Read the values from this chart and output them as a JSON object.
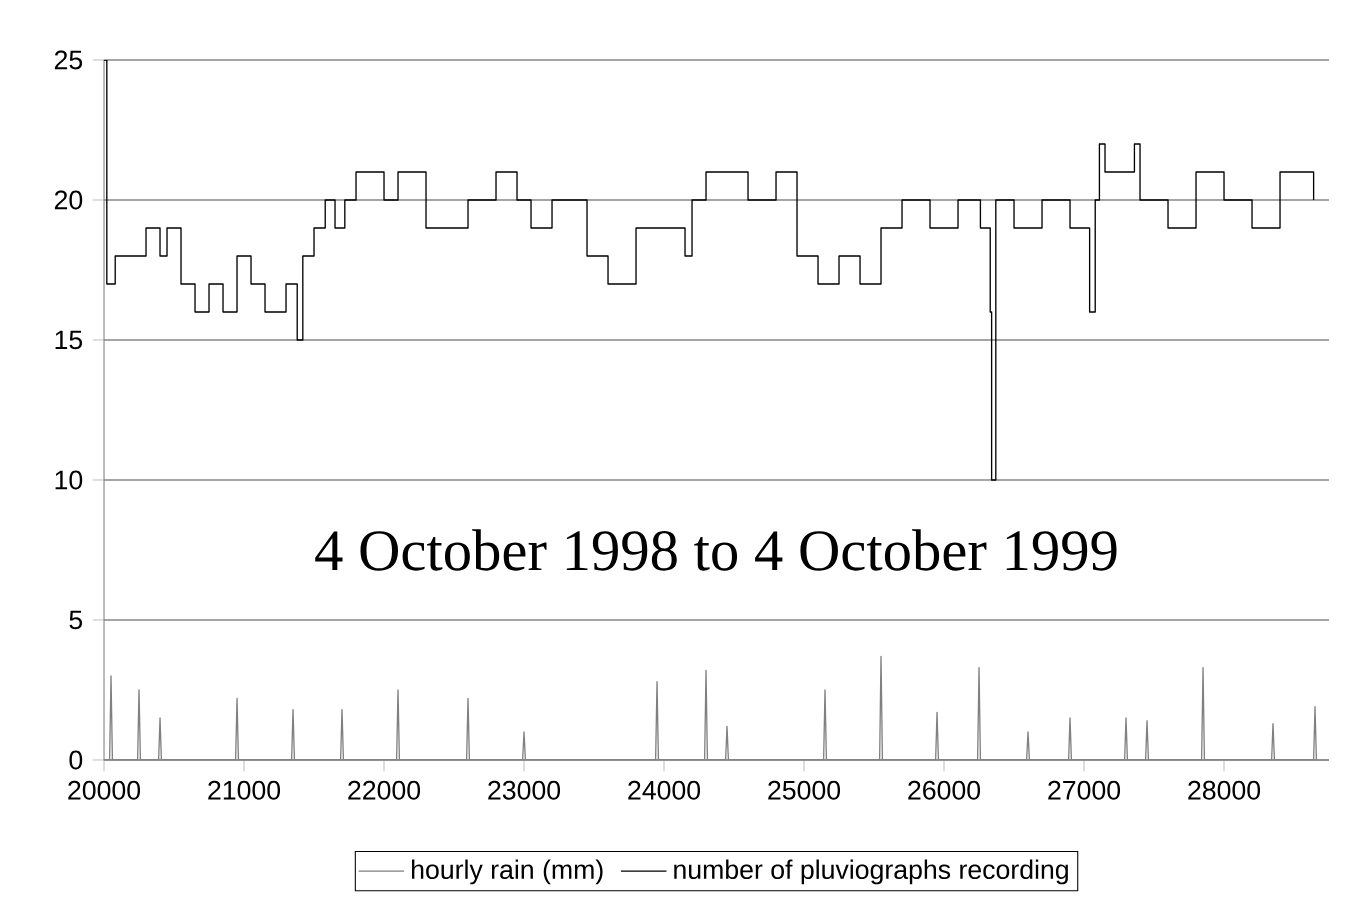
{
  "chart_data": {
    "type": "step",
    "annotations": [
      "4 October 1998 to 4 October 1999"
    ],
    "xlim": [
      20000,
      28750
    ],
    "ylim": [
      0,
      25
    ],
    "xticks": [
      20000,
      21000,
      22000,
      23000,
      24000,
      25000,
      26000,
      27000,
      28000
    ],
    "yticks": [
      0,
      5,
      10,
      15,
      20,
      25
    ],
    "grid": "y",
    "legend": "bottom",
    "series": [
      {
        "name": "hourly rain (mm)",
        "type": "line",
        "color": "#808080",
        "x": [
          20000,
          20040,
          20050,
          20060,
          20240,
          20250,
          20260,
          20390,
          20400,
          20410,
          20940,
          20950,
          20960,
          21340,
          21350,
          21360,
          21690,
          21700,
          21710,
          22090,
          22100,
          22110,
          22590,
          22600,
          22610,
          22990,
          23000,
          23010,
          23940,
          23950,
          23960,
          24290,
          24300,
          24310,
          24440,
          24450,
          24460,
          25140,
          25150,
          25160,
          25540,
          25550,
          25560,
          25940,
          25950,
          25960,
          26240,
          26250,
          26260,
          26590,
          26600,
          26610,
          26890,
          26900,
          26910,
          27290,
          27300,
          27310,
          27440,
          27450,
          27460,
          27840,
          27850,
          27860,
          28340,
          28350,
          28360,
          28640,
          28650,
          28660
        ],
        "values": [
          0,
          0,
          3.0,
          0,
          0,
          2.5,
          0,
          0,
          1.5,
          0,
          0,
          2.2,
          0,
          0,
          1.8,
          0,
          0,
          1.8,
          0,
          0,
          2.5,
          0,
          0,
          2.2,
          0,
          0,
          1.0,
          0,
          0,
          2.8,
          0,
          0,
          3.2,
          0,
          0,
          1.2,
          0,
          0,
          2.5,
          0,
          0,
          3.7,
          0,
          0,
          1.7,
          0,
          0,
          3.3,
          0,
          0,
          1.0,
          0,
          0,
          1.5,
          0,
          0,
          1.5,
          0,
          0,
          1.4,
          0,
          0,
          3.3,
          0,
          0,
          1.3,
          0,
          0,
          1.9,
          0
        ]
      },
      {
        "name": "number of pluviographs recording",
        "color": "#000000",
        "x": [
          20000,
          20020,
          20080,
          20200,
          20300,
          20400,
          20450,
          20550,
          20650,
          20750,
          20850,
          20950,
          21050,
          21150,
          21300,
          21380,
          21420,
          21500,
          21580,
          21650,
          21720,
          21800,
          22000,
          22100,
          22300,
          22500,
          22600,
          22800,
          22950,
          23050,
          23200,
          23450,
          23600,
          23800,
          24000,
          24150,
          24200,
          24300,
          24600,
          24800,
          24950,
          25100,
          25250,
          25400,
          25550,
          25700,
          25900,
          26100,
          26260,
          26330,
          26340,
          26370,
          26500,
          26700,
          26900,
          27040,
          27080,
          27110,
          27150,
          27360,
          27400,
          27600,
          27800,
          28000,
          28200,
          28400,
          28640
        ],
        "values": [
          25,
          17,
          18,
          18,
          19,
          18,
          19,
          17,
          16,
          17,
          16,
          18,
          17,
          16,
          17,
          15,
          18,
          19,
          20,
          19,
          20,
          21,
          20,
          21,
          19,
          19,
          20,
          21,
          20,
          19,
          20,
          18,
          17,
          19,
          19,
          18,
          20,
          21,
          20,
          21,
          18,
          17,
          18,
          17,
          19,
          20,
          19,
          20,
          19,
          16,
          10,
          20,
          19,
          20,
          19,
          16,
          20,
          22,
          21,
          22,
          20,
          19,
          21,
          20,
          19,
          21,
          20
        ]
      }
    ]
  }
}
